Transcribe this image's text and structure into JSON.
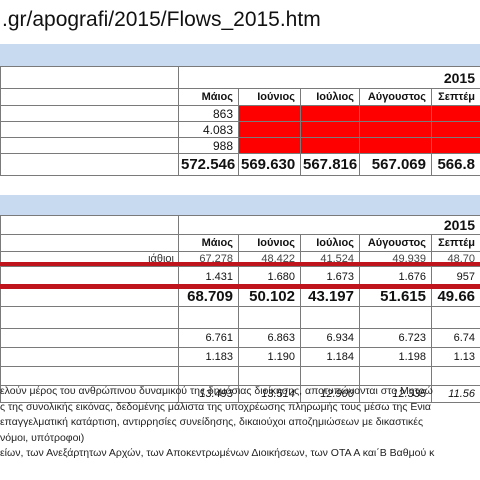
{
  "url": {
    "text": ".gr/apografi/2015/Flows_2015.htm"
  },
  "table1": {
    "year": "2015",
    "months": [
      "Μάιος",
      "Ιούνιος",
      "Ιούλιος",
      "Αύγουστος",
      "Σεπτέμ"
    ],
    "rows": [
      [
        "863",
        "",
        "",
        "",
        ""
      ],
      [
        "4.083",
        "",
        "",
        "",
        ""
      ],
      [
        "988",
        "",
        "",
        "",
        ""
      ]
    ],
    "totals": [
      "572.546",
      "569.630",
      "567.816",
      "567.069",
      "566.8"
    ],
    "highlight_color": "#ff0000"
  },
  "table2": {
    "year": "2015",
    "months": [
      "Μάιος",
      "Ιούνιος",
      "Ιούλιος",
      "Αύγουστος",
      "Σεπτέμ"
    ],
    "row_label_partial": "ιάθιοι",
    "rows": [
      [
        "67.278",
        "48.422",
        "41.524",
        "49.939",
        "48.70"
      ],
      [
        "1.431",
        "1.680",
        "1.673",
        "1.676",
        "957"
      ]
    ],
    "totals": [
      "68.709",
      "50.102",
      "43.197",
      "51.615",
      "49.66"
    ],
    "rows_b": [
      [
        "6.761",
        "6.863",
        "6.934",
        "6.723",
        "6.74"
      ],
      [
        "1.183",
        "1.190",
        "1.184",
        "1.198",
        "1.13"
      ]
    ],
    "italic_totals": [
      "13.493",
      "13.514",
      "12.900",
      "12.335",
      "11.56"
    ],
    "line_color": "#c0141c"
  },
  "notes": [
    "ελούν μέρος του ανθρώπινου δυναμικού της δημόσιας διοίκησης, αποτυπώνονται στο Μητρώ",
    "ς της συνολικής εικόνας, δεδομένης μάλιστα της υποχρέωσης πληρωμής τους μέσω της Ενια",
    "επαγγελματική κατάρτιση, αντιρρησίες συνείδησης, δικαιούχοι αποζημιώσεων με δικαστικές",
    "νόμοι, υπότροφοι)",
    "είων, των Ανεξάρτητων Αρχών, των Αποκεντρωμένων Διοικήσεων, των ΟΤΑ Α και΄Β Βαθμού κ"
  ]
}
